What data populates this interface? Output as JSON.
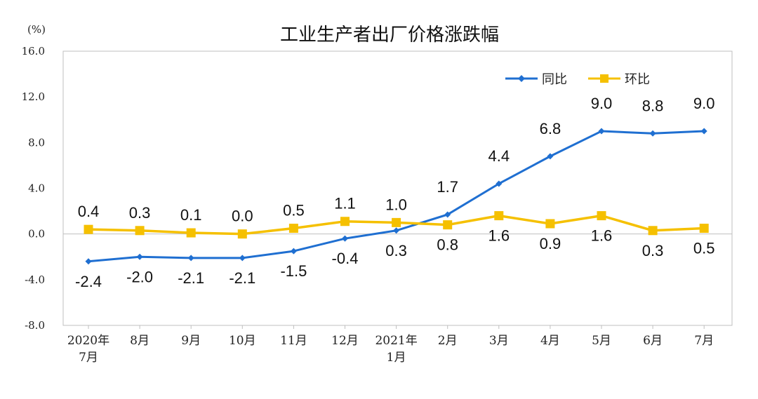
{
  "chart_data": {
    "type": "line",
    "title": "工业生产者出厂价格涨跌幅",
    "ylabel": "(%)",
    "ylim": [
      -8.0,
      16.0
    ],
    "yticks": [
      "16.0",
      "12.0",
      "8.0",
      "4.0",
      "0.0",
      "-4.0",
      "-8.0"
    ],
    "categories": [
      [
        "2020年",
        "7月"
      ],
      [
        "8月"
      ],
      [
        "9月"
      ],
      [
        "10月"
      ],
      [
        "11月"
      ],
      [
        "12月"
      ],
      [
        "2021年",
        "1月"
      ],
      [
        "2月"
      ],
      [
        "3月"
      ],
      [
        "4月"
      ],
      [
        "5月"
      ],
      [
        "6月"
      ],
      [
        "7月"
      ]
    ],
    "series": [
      {
        "name": "同比",
        "color": "#1f6fd1",
        "marker": "diamond",
        "values": [
          -2.4,
          -2.0,
          -2.1,
          -2.1,
          -1.5,
          -0.4,
          0.3,
          1.7,
          4.4,
          6.8,
          9.0,
          8.8,
          9.0
        ],
        "labels": [
          "-2.4",
          "-2.0",
          "-2.1",
          "-2.1",
          "-1.5",
          "-0.4",
          "0.3",
          "1.7",
          "4.4",
          "6.8",
          "9.0",
          "8.8",
          "9.0"
        ]
      },
      {
        "name": "环比",
        "color": "#f5c000",
        "marker": "square",
        "values": [
          0.4,
          0.3,
          0.1,
          0.0,
          0.5,
          1.1,
          1.0,
          0.8,
          1.6,
          0.9,
          1.6,
          0.3,
          0.5
        ],
        "labels": [
          "0.4",
          "0.3",
          "0.1",
          "0.0",
          "0.5",
          "1.1",
          "1.0",
          "0.8",
          "1.6",
          "0.9",
          "1.6",
          "0.3",
          "0.5"
        ]
      }
    ],
    "legend_position": "top-right",
    "grid": false
  }
}
